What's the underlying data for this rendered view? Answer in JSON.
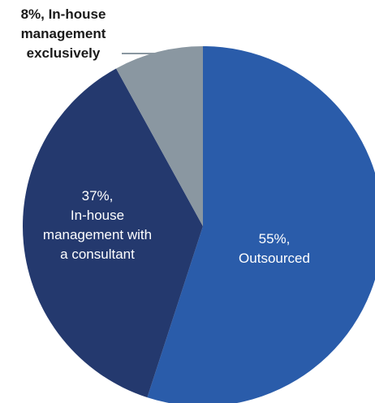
{
  "chart_data": {
    "type": "pie",
    "slices": [
      {
        "value": 55,
        "label_lines": [
          "55%,",
          "Outsourced"
        ],
        "color": "#2a5caa",
        "label_position": "inside"
      },
      {
        "value": 37,
        "label_lines": [
          "37%,",
          "In-house",
          "management with",
          "a consultant"
        ],
        "color": "#24396e",
        "label_position": "inside"
      },
      {
        "value": 8,
        "label_lines": [
          "8%, In-house",
          "management",
          "exclusively"
        ],
        "color": "#8a97a1",
        "label_position": "outside-top-left"
      }
    ],
    "start_angle_deg": 0,
    "direction": "clockwise",
    "legend": "none"
  }
}
